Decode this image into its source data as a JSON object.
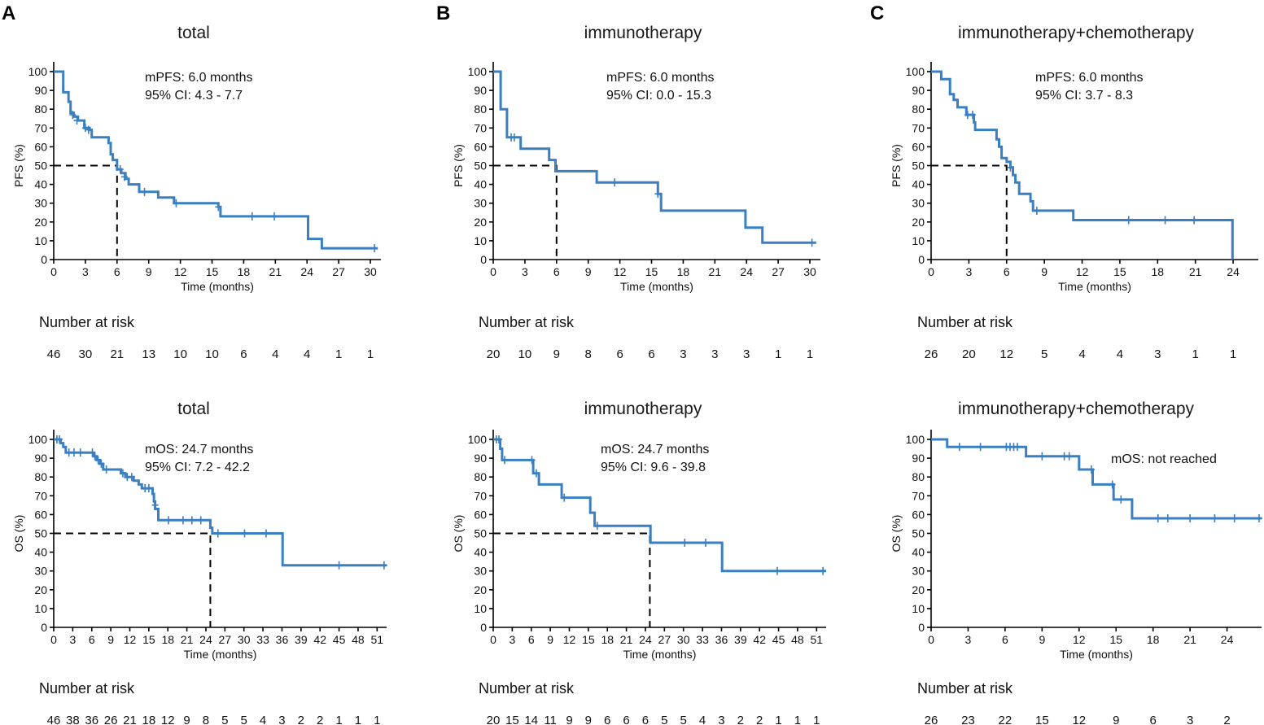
{
  "panel_labels": [
    "A",
    "B",
    "C"
  ],
  "chart_data": [
    {
      "id": "A-pfs",
      "type": "line",
      "panel": "A",
      "title": "total",
      "xlabel": "Time (months)",
      "ylabel": "PFS (%)",
      "xlim": [
        0,
        31
      ],
      "xticks": [
        0,
        3,
        6,
        9,
        12,
        15,
        18,
        21,
        24,
        27,
        30
      ],
      "ylim": [
        0,
        100
      ],
      "yticks": [
        0,
        10,
        20,
        30,
        40,
        50,
        60,
        70,
        80,
        90,
        100
      ],
      "annotations": [
        "mPFS: 6.0 months",
        "95% CI:  4.3 - 7.7"
      ],
      "median": 6.0,
      "risk_label": "Number at risk",
      "risk_values": [
        "46",
        "30",
        "21",
        "13",
        "10",
        "10",
        "6",
        "4",
        "4",
        "1",
        "1"
      ],
      "steps": [
        [
          0,
          100
        ],
        [
          0.9,
          89
        ],
        [
          1.4,
          84
        ],
        [
          1.6,
          78
        ],
        [
          1.9,
          76
        ],
        [
          2.3,
          74
        ],
        [
          2.9,
          70
        ],
        [
          3.4,
          69
        ],
        [
          3.6,
          65
        ],
        [
          5.2,
          62
        ],
        [
          5.4,
          56
        ],
        [
          5.6,
          53
        ],
        [
          6.0,
          48
        ],
        [
          6.4,
          46
        ],
        [
          6.8,
          43
        ],
        [
          7.1,
          40
        ],
        [
          8.1,
          36
        ],
        [
          9.9,
          33
        ],
        [
          11.4,
          30
        ],
        [
          15.6,
          28
        ],
        [
          15.8,
          23
        ],
        [
          24.1,
          11
        ],
        [
          25.4,
          6
        ],
        [
          30.7,
          6
        ]
      ],
      "censors": [
        [
          1.8,
          77
        ],
        [
          2.2,
          74
        ],
        [
          3.0,
          70
        ],
        [
          3.3,
          69
        ],
        [
          6.3,
          48
        ],
        [
          6.7,
          44
        ],
        [
          8.6,
          36
        ],
        [
          11.6,
          30
        ],
        [
          15.6,
          28
        ],
        [
          18.8,
          23
        ],
        [
          20.9,
          23
        ],
        [
          30.4,
          6
        ]
      ]
    },
    {
      "id": "B-pfs",
      "type": "line",
      "panel": "B",
      "title": "immunotherapy",
      "xlabel": "Time (months)",
      "ylabel": "PFS (%)",
      "xlim": [
        0,
        31
      ],
      "xticks": [
        0,
        3,
        6,
        9,
        12,
        15,
        18,
        21,
        24,
        27,
        30
      ],
      "ylim": [
        0,
        100
      ],
      "yticks": [
        0,
        10,
        20,
        30,
        40,
        50,
        60,
        70,
        80,
        90,
        100
      ],
      "annotations": [
        "mPFS: 6.0 months",
        "95% CI:  0.0 - 15.3"
      ],
      "median": 6.0,
      "risk_label": "Number at risk",
      "risk_values": [
        "20",
        "10",
        "9",
        "8",
        "6",
        "6",
        "3",
        "3",
        "3",
        "1",
        "1"
      ],
      "steps": [
        [
          0,
          100
        ],
        [
          0.7,
          80
        ],
        [
          1.3,
          65
        ],
        [
          2.6,
          59
        ],
        [
          5.3,
          53
        ],
        [
          5.9,
          47
        ],
        [
          9.8,
          41
        ],
        [
          15.6,
          35
        ],
        [
          15.9,
          26
        ],
        [
          23.9,
          17
        ],
        [
          25.5,
          9
        ],
        [
          30.6,
          9
        ]
      ],
      "censors": [
        [
          1.7,
          65
        ],
        [
          2.0,
          65
        ],
        [
          11.5,
          41
        ],
        [
          15.6,
          35
        ],
        [
          30.2,
          9
        ]
      ]
    },
    {
      "id": "C-pfs",
      "type": "line",
      "panel": "C",
      "title": "immunotherapy+chemotherapy",
      "xlabel": "Time (months)",
      "ylabel": "PFS (%)",
      "xlim": [
        0,
        26
      ],
      "xticks": [
        0,
        3,
        6,
        9,
        12,
        15,
        18,
        21,
        24
      ],
      "ylim": [
        0,
        100
      ],
      "yticks": [
        0,
        10,
        20,
        30,
        40,
        50,
        60,
        70,
        80,
        90,
        100
      ],
      "annotations": [
        "mPFS: 6.0 months",
        "95% CI:  3.7 - 8.3"
      ],
      "median": 6.0,
      "risk_label": "Number at risk",
      "risk_values": [
        "26",
        "20",
        "12",
        "5",
        "4",
        "4",
        "3",
        "1",
        "1"
      ],
      "steps": [
        [
          0,
          100
        ],
        [
          0.8,
          96
        ],
        [
          1.5,
          88
        ],
        [
          1.8,
          85
        ],
        [
          2.1,
          81
        ],
        [
          2.8,
          77
        ],
        [
          3.4,
          73
        ],
        [
          3.5,
          69
        ],
        [
          5.2,
          64
        ],
        [
          5.4,
          60
        ],
        [
          5.6,
          54
        ],
        [
          6.0,
          52
        ],
        [
          6.3,
          49
        ],
        [
          6.5,
          45
        ],
        [
          6.7,
          41
        ],
        [
          7.0,
          35
        ],
        [
          7.9,
          31
        ],
        [
          8.1,
          26
        ],
        [
          11.3,
          21
        ],
        [
          23.9,
          21
        ],
        [
          23.95,
          0
        ]
      ],
      "censors": [
        [
          2.9,
          77
        ],
        [
          3.3,
          77
        ],
        [
          6.3,
          49
        ],
        [
          8.4,
          26
        ],
        [
          15.7,
          21
        ],
        [
          18.6,
          21
        ],
        [
          20.9,
          21
        ]
      ]
    },
    {
      "id": "A-os",
      "type": "line",
      "panel": "A",
      "title": "total",
      "xlabel": "Time (months)",
      "ylabel": "OS (%)",
      "xlim": [
        0,
        52.5
      ],
      "xticks": [
        0,
        3,
        6,
        9,
        12,
        15,
        18,
        21,
        24,
        27,
        30,
        33,
        36,
        39,
        42,
        45,
        48,
        51
      ],
      "ylim": [
        0,
        100
      ],
      "yticks": [
        0,
        10,
        20,
        30,
        40,
        50,
        60,
        70,
        80,
        90,
        100
      ],
      "annotations": [
        "mOS: 24.7 months",
        "95% CI:  7.2 - 42.2"
      ],
      "median": 24.7,
      "risk_label": "Number at risk",
      "risk_values": [
        "46",
        "38",
        "36",
        "26",
        "21",
        "18",
        "12",
        "9",
        "8",
        "5",
        "5",
        "4",
        "3",
        "2",
        "2",
        "1",
        "1",
        "1"
      ],
      "steps": [
        [
          0,
          100
        ],
        [
          1.1,
          98
        ],
        [
          1.5,
          96
        ],
        [
          1.9,
          93
        ],
        [
          6.3,
          91
        ],
        [
          6.8,
          89
        ],
        [
          7.3,
          87
        ],
        [
          7.8,
          84
        ],
        [
          10.6,
          82
        ],
        [
          11.3,
          80
        ],
        [
          12.6,
          78
        ],
        [
          13.4,
          76
        ],
        [
          13.9,
          74
        ],
        [
          15.6,
          71
        ],
        [
          15.8,
          67
        ],
        [
          16.0,
          63
        ],
        [
          16.5,
          57
        ],
        [
          24.7,
          53
        ],
        [
          25.0,
          50
        ],
        [
          36.1,
          33
        ],
        [
          52.5,
          33
        ]
      ],
      "censors": [
        [
          0.5,
          100
        ],
        [
          0.9,
          100
        ],
        [
          2.4,
          93
        ],
        [
          3.2,
          93
        ],
        [
          4.2,
          93
        ],
        [
          6.1,
          93
        ],
        [
          6.5,
          91
        ],
        [
          7.0,
          89
        ],
        [
          7.5,
          87
        ],
        [
          8.3,
          84
        ],
        [
          10.9,
          82
        ],
        [
          11.6,
          80
        ],
        [
          12.3,
          80
        ],
        [
          14.4,
          74
        ],
        [
          15.0,
          74
        ],
        [
          16.0,
          65
        ],
        [
          18.1,
          57
        ],
        [
          20.4,
          57
        ],
        [
          21.8,
          57
        ],
        [
          23.2,
          57
        ],
        [
          25.9,
          50
        ],
        [
          30.1,
          50
        ],
        [
          33.5,
          50
        ],
        [
          45.0,
          33
        ],
        [
          52.1,
          33
        ]
      ]
    },
    {
      "id": "B-os",
      "type": "line",
      "panel": "B",
      "title": "immunotherapy",
      "xlabel": "Time (months)",
      "ylabel": "OS (%)",
      "xlim": [
        0,
        52.5
      ],
      "xticks": [
        0,
        3,
        6,
        9,
        12,
        15,
        18,
        21,
        24,
        27,
        30,
        33,
        36,
        39,
        42,
        45,
        48,
        51
      ],
      "ylim": [
        0,
        100
      ],
      "yticks": [
        0,
        10,
        20,
        30,
        40,
        50,
        60,
        70,
        80,
        90,
        100
      ],
      "annotations": [
        "mOS: 24.7 months",
        "95% CI:  9.6 - 39.8"
      ],
      "median": 24.7,
      "risk_label": "Number at risk",
      "risk_values": [
        "20",
        "15",
        "14",
        "11",
        "9",
        "9",
        "6",
        "6",
        "6",
        "5",
        "5",
        "4",
        "3",
        "2",
        "2",
        "1",
        "1",
        "1"
      ],
      "steps": [
        [
          0,
          100
        ],
        [
          1.1,
          95
        ],
        [
          1.4,
          89
        ],
        [
          6.3,
          82
        ],
        [
          7.2,
          76
        ],
        [
          10.8,
          69
        ],
        [
          15.3,
          61
        ],
        [
          16.0,
          54
        ],
        [
          24.8,
          45
        ],
        [
          36.1,
          30
        ],
        [
          52.5,
          30
        ]
      ],
      "censors": [
        [
          0.5,
          100
        ],
        [
          0.9,
          100
        ],
        [
          1.8,
          89
        ],
        [
          6.1,
          89
        ],
        [
          6.8,
          82
        ],
        [
          11.2,
          69
        ],
        [
          16.4,
          54
        ],
        [
          30.2,
          45
        ],
        [
          33.5,
          45
        ],
        [
          44.8,
          30
        ],
        [
          52.0,
          30
        ]
      ]
    },
    {
      "id": "C-os",
      "type": "line",
      "panel": "C",
      "title": "immunotherapy+chemotherapy",
      "xlabel": "Time (months)",
      "ylabel": "OS (%)",
      "xlim": [
        0,
        26.8
      ],
      "xticks": [
        0,
        3,
        6,
        9,
        12,
        15,
        18,
        21,
        24
      ],
      "ylim": [
        0,
        100
      ],
      "yticks": [
        0,
        10,
        20,
        30,
        40,
        50,
        60,
        70,
        80,
        90,
        100
      ],
      "annotations": [
        "mOS: not reached"
      ],
      "median": null,
      "risk_label": "Number at risk",
      "risk_values": [
        "26",
        "23",
        "22",
        "15",
        "12",
        "9",
        "6",
        "3",
        "2"
      ],
      "steps": [
        [
          0,
          100
        ],
        [
          1.3,
          96
        ],
        [
          7.7,
          91
        ],
        [
          12.0,
          84
        ],
        [
          13.1,
          76
        ],
        [
          14.8,
          68
        ],
        [
          16.3,
          58
        ],
        [
          26.8,
          58
        ]
      ],
      "censors": [
        [
          2.3,
          96
        ],
        [
          4.0,
          96
        ],
        [
          6.1,
          96
        ],
        [
          6.4,
          96
        ],
        [
          6.7,
          96
        ],
        [
          7.0,
          96
        ],
        [
          9.0,
          91
        ],
        [
          10.8,
          91
        ],
        [
          11.2,
          91
        ],
        [
          13.0,
          84
        ],
        [
          14.7,
          76
        ],
        [
          15.4,
          68
        ],
        [
          18.4,
          58
        ],
        [
          19.2,
          58
        ],
        [
          21.0,
          58
        ],
        [
          23.0,
          58
        ],
        [
          24.6,
          58
        ],
        [
          26.6,
          58
        ]
      ]
    }
  ]
}
